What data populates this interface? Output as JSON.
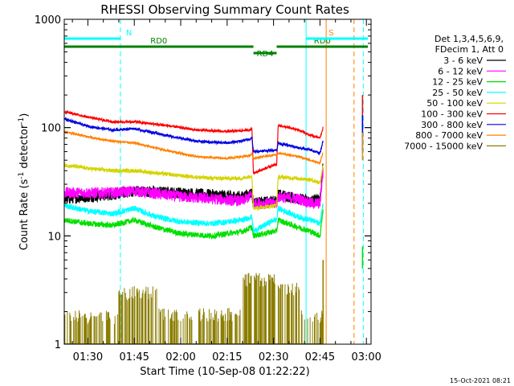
{
  "chart_data": {
    "type": "line",
    "title": "RHESSI Observing Summary Count Rates",
    "xlabel": "Start Time (10-Sep-08 01:22:22)",
    "ylabel_main": "Count Rate (s",
    "ylabel_sup": "-1",
    "ylabel_mid": " detector",
    "ylabel_end": ")",
    "y_scale": "log",
    "ylim": [
      1,
      1000
    ],
    "xlim": [
      "01:22:22",
      "03:01:30"
    ],
    "x_ticks": [
      "01:30",
      "01:45",
      "02:00",
      "02:15",
      "02:30",
      "02:45",
      "03:00"
    ],
    "y_ticks": [
      "1",
      "10",
      "100",
      "1000"
    ],
    "timestamp": "15-Oct-2021 08:21",
    "legend": {
      "header": [
        "Det 1,3,4,5,6,9,",
        "FDecim 1, Att 0"
      ],
      "placement": "right",
      "entries": [
        {
          "label": "3 - 6 keV",
          "color": "#000000"
        },
        {
          "label": "6 - 12 keV",
          "color": "#ff00ff"
        },
        {
          "label": "12 - 25 keV",
          "color": "#00e000"
        },
        {
          "label": "25 - 50 keV",
          "color": "#00ffff"
        },
        {
          "label": "50 - 100 keV",
          "color": "#d4d400"
        },
        {
          "label": "100 - 300 keV",
          "color": "#ff0000"
        },
        {
          "label": "300 - 800 keV",
          "color": "#0000e0"
        },
        {
          "label": "800 - 7000 keV",
          "color": "#ff8000"
        },
        {
          "label": "7000 - 15000 keV",
          "color": "#8b7d00"
        }
      ]
    },
    "flags": [
      {
        "label": "N",
        "start": "01:22:22",
        "end": "01:40:30",
        "color": "#00ffff",
        "level": "top"
      },
      {
        "label": "RD0",
        "start": "01:22:22",
        "end": "02:23:30",
        "color": "#008000",
        "level": "mid"
      },
      {
        "label": "RD0",
        "start": "02:31:00",
        "end": "03:00:30",
        "color": "#008000",
        "level": "mid"
      },
      {
        "label": "RD4",
        "start": "02:23:30",
        "end": "02:31:00",
        "color": "#008000",
        "level": "low"
      },
      {
        "label": "S",
        "start": "02:50:30",
        "end": "02:56:00",
        "color": "#ff8000",
        "level": "top"
      },
      {
        "label": "",
        "start": "02:40:30",
        "end": "03:00:30",
        "color": "#00ffff",
        "level": "top"
      }
    ],
    "markers": [
      {
        "time": "01:22:22",
        "color": "#00ffff",
        "style": "solid"
      },
      {
        "time": "01:40:30",
        "color": "#00ffff",
        "style": "dashed"
      },
      {
        "time": "02:40:30",
        "color": "#00ffff",
        "style": "solid"
      },
      {
        "time": "02:47:00",
        "color": "#ff8000",
        "style": "solid"
      },
      {
        "time": "02:56:00",
        "color": "#ff8000",
        "style": "dashed"
      },
      {
        "time": "02:59:00",
        "color": "#00ffff",
        "style": "dashed"
      }
    ],
    "series": [
      {
        "name": "3 - 6 keV",
        "color": "#000000",
        "noise": 0.12,
        "points": [
          [
            "01:22:30",
            22
          ],
          [
            "01:30:00",
            23
          ],
          [
            "01:38:00",
            24
          ],
          [
            "01:45:00",
            26
          ],
          [
            "02:00:00",
            25
          ],
          [
            "02:10:00",
            24
          ],
          [
            "02:20:00",
            23
          ],
          [
            "02:23:00",
            25
          ],
          [
            "02:23:30",
            20
          ],
          [
            "02:30:00",
            21
          ],
          [
            "02:31:00",
            21
          ],
          [
            "02:31:30",
            24
          ],
          [
            "02:38:00",
            22
          ],
          [
            "02:42:00",
            21
          ],
          [
            "02:45:00",
            22
          ],
          [
            "02:46:00",
            45
          ]
        ]
      },
      {
        "name": "6 - 12 keV",
        "color": "#ff00ff",
        "noise": 0.12,
        "points": [
          [
            "01:22:30",
            25
          ],
          [
            "01:30:00",
            25
          ],
          [
            "01:38:00",
            25
          ],
          [
            "01:45:00",
            26
          ],
          [
            "02:00:00",
            23
          ],
          [
            "02:10:00",
            22
          ],
          [
            "02:20:00",
            21
          ],
          [
            "02:23:00",
            24
          ],
          [
            "02:23:30",
            20
          ],
          [
            "02:30:00",
            20
          ],
          [
            "02:31:00",
            20
          ],
          [
            "02:31:30",
            23
          ],
          [
            "02:38:00",
            22
          ],
          [
            "02:42:00",
            20
          ],
          [
            "02:45:00",
            20
          ],
          [
            "02:46:00",
            40
          ]
        ]
      },
      {
        "name": "12 - 25 keV",
        "color": "#00e000",
        "noise": 0.06,
        "points": [
          [
            "01:22:30",
            14
          ],
          [
            "01:30:00",
            13
          ],
          [
            "01:38:00",
            12.5
          ],
          [
            "01:45:00",
            14
          ],
          [
            "01:52:00",
            12
          ],
          [
            "02:00:00",
            10.5
          ],
          [
            "02:10:00",
            10
          ],
          [
            "02:20:00",
            11
          ],
          [
            "02:23:00",
            12
          ],
          [
            "02:23:30",
            10
          ],
          [
            "02:30:00",
            11
          ],
          [
            "02:31:00",
            11
          ],
          [
            "02:31:30",
            14
          ],
          [
            "02:38:00",
            12
          ],
          [
            "02:42:00",
            11
          ],
          [
            "02:45:00",
            10
          ],
          [
            "02:46:00",
            18
          ]
        ]
      },
      {
        "name": "25 - 50 keV",
        "color": "#00ffff",
        "noise": 0.06,
        "points": [
          [
            "01:22:30",
            19
          ],
          [
            "01:30:00",
            17
          ],
          [
            "01:38:00",
            16
          ],
          [
            "01:45:00",
            18
          ],
          [
            "01:52:00",
            15
          ],
          [
            "02:00:00",
            13.5
          ],
          [
            "02:10:00",
            13
          ],
          [
            "02:20:00",
            14
          ],
          [
            "02:23:00",
            15
          ],
          [
            "02:23:30",
            11
          ],
          [
            "02:30:00",
            14
          ],
          [
            "02:31:00",
            14
          ],
          [
            "02:31:30",
            18
          ],
          [
            "02:38:00",
            15
          ],
          [
            "02:42:00",
            14
          ],
          [
            "02:45:00",
            13
          ],
          [
            "02:46:00",
            20
          ]
        ]
      },
      {
        "name": "50 - 100 keV",
        "color": "#d4d400",
        "noise": 0.04,
        "points": [
          [
            "01:22:30",
            45
          ],
          [
            "01:30:00",
            42
          ],
          [
            "01:38:00",
            40
          ],
          [
            "01:45:00",
            40
          ],
          [
            "02:00:00",
            36
          ],
          [
            "02:10:00",
            34
          ],
          [
            "02:20:00",
            34
          ],
          [
            "02:23:00",
            36
          ],
          [
            "02:23:30",
            18
          ],
          [
            "02:30:00",
            19
          ],
          [
            "02:31:00",
            19
          ],
          [
            "02:31:30",
            35
          ],
          [
            "02:38:00",
            34
          ],
          [
            "02:42:00",
            33
          ],
          [
            "02:45:00",
            31
          ],
          [
            "02:46:00",
            45
          ]
        ]
      },
      {
        "name": "100 - 300 keV",
        "color": "#ff0000",
        "noise": 0.025,
        "points": [
          [
            "01:22:30",
            140
          ],
          [
            "01:30:00",
            125
          ],
          [
            "01:38:00",
            113
          ],
          [
            "01:45:00",
            113
          ],
          [
            "01:55:00",
            105
          ],
          [
            "02:05:00",
            95
          ],
          [
            "02:15:00",
            92
          ],
          [
            "02:22:30",
            95
          ],
          [
            "02:23:00",
            100
          ],
          [
            "02:23:30",
            38
          ],
          [
            "02:30:00",
            45
          ],
          [
            "02:31:00",
            45
          ],
          [
            "02:31:30",
            105
          ],
          [
            "02:38:00",
            95
          ],
          [
            "02:42:00",
            85
          ],
          [
            "02:45:00",
            80
          ],
          [
            "02:46:00",
            100
          ]
        ]
      },
      {
        "name": "300 - 800 keV",
        "color": "#0000e0",
        "noise": 0.025,
        "points": [
          [
            "01:22:30",
            120
          ],
          [
            "01:30:00",
            103
          ],
          [
            "01:38:00",
            95
          ],
          [
            "01:45:00",
            98
          ],
          [
            "01:55:00",
            85
          ],
          [
            "02:05:00",
            75
          ],
          [
            "02:15:00",
            72
          ],
          [
            "02:22:30",
            78
          ],
          [
            "02:23:00",
            82
          ],
          [
            "02:23:30",
            60
          ],
          [
            "02:30:00",
            62
          ],
          [
            "02:31:00",
            62
          ],
          [
            "02:31:30",
            72
          ],
          [
            "02:38:00",
            65
          ],
          [
            "02:42:00",
            62
          ],
          [
            "02:45:00",
            58
          ],
          [
            "02:46:00",
            75
          ]
        ]
      },
      {
        "name": "800 - 7000 keV",
        "color": "#ff8000",
        "noise": 0.02,
        "points": [
          [
            "01:22:30",
            92
          ],
          [
            "01:30:00",
            82
          ],
          [
            "01:38:00",
            75
          ],
          [
            "01:45:00",
            72
          ],
          [
            "01:55:00",
            62
          ],
          [
            "02:05:00",
            54
          ],
          [
            "02:15:00",
            52
          ],
          [
            "02:22:30",
            55
          ],
          [
            "02:23:00",
            58
          ],
          [
            "02:23:30",
            52
          ],
          [
            "02:30:00",
            56
          ],
          [
            "02:31:00",
            56
          ],
          [
            "02:31:30",
            58
          ],
          [
            "02:38:00",
            54
          ],
          [
            "02:42:00",
            50
          ],
          [
            "02:45:00",
            47
          ],
          [
            "02:46:00",
            60
          ]
        ]
      }
    ],
    "step_series": {
      "name": "7000 - 15000 keV",
      "color": "#8b7d00",
      "segments": [
        {
          "start": "01:22:22",
          "end": "01:40:00",
          "level": 1.8
        },
        {
          "start": "01:40:00",
          "end": "01:53:00",
          "level": 3
        },
        {
          "start": "01:53:00",
          "end": "02:20:00",
          "level": 1.9
        },
        {
          "start": "02:20:00",
          "end": "02:31:30",
          "level": 4
        },
        {
          "start": "02:31:30",
          "end": "02:39:00",
          "level": 3.2
        },
        {
          "start": "02:39:00",
          "end": "02:46:00",
          "level": 1.8
        }
      ]
    }
  }
}
